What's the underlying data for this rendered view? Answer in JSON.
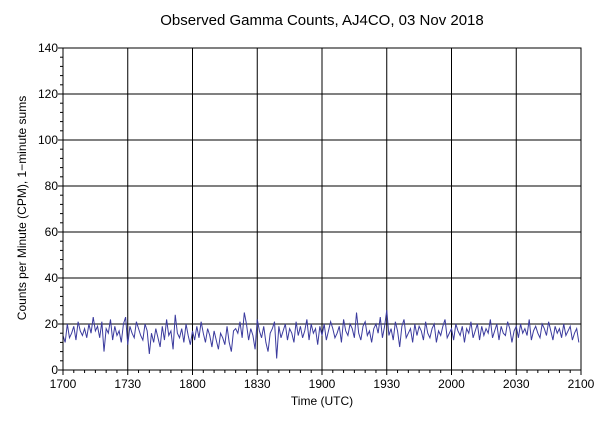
{
  "chart_data": {
    "type": "line",
    "title": "Observed Gamma Counts, AJ4CO, 03 Nov 2018",
    "xlabel": "Time (UTC)",
    "ylabel": "Counts per Minute (CPM), 1−minute sums",
    "xlim": [
      0,
      240
    ],
    "ylim": [
      0,
      140
    ],
    "x_tick_labels": [
      "1700",
      "1730",
      "1800",
      "1830",
      "1900",
      "1930",
      "2000",
      "2030",
      "2100"
    ],
    "y_tick_labels": [
      "0",
      "20",
      "40",
      "60",
      "80",
      "100",
      "120",
      "140"
    ],
    "grid": true,
    "line_color": "#3b3b9e",
    "series": [
      {
        "name": "",
        "values": [
          15,
          12,
          20,
          14,
          16,
          19,
          13,
          21,
          17,
          15,
          18,
          14,
          20,
          16,
          23,
          17,
          19,
          14,
          21,
          8,
          18,
          16,
          22,
          13,
          19,
          15,
          17,
          12,
          20,
          23,
          11,
          19,
          16,
          14,
          21,
          18,
          15,
          13,
          20,
          17,
          7,
          16,
          12,
          18,
          14,
          10,
          19,
          13,
          22,
          15,
          17,
          9,
          24,
          16,
          14,
          18,
          12,
          20,
          15,
          11,
          17,
          13,
          19,
          14,
          21,
          16,
          12,
          18,
          15,
          10,
          17,
          13,
          9,
          16,
          14,
          11,
          19,
          12,
          8,
          17,
          18,
          16,
          21,
          14,
          25,
          20,
          13,
          18,
          15,
          9,
          22,
          17,
          14,
          19,
          12,
          8,
          16,
          18,
          21,
          5,
          19,
          14,
          17,
          20,
          13,
          18,
          16,
          12,
          21,
          15,
          19,
          14,
          17,
          22,
          13,
          20,
          16,
          18,
          11,
          19,
          15,
          20,
          13,
          17,
          21,
          18,
          14,
          16,
          19,
          12,
          22,
          17,
          15,
          20,
          18,
          14,
          25,
          16,
          13,
          19,
          21,
          15,
          17,
          12,
          18,
          20,
          16,
          23,
          14,
          19,
          26,
          15,
          18,
          13,
          21,
          17,
          10,
          19,
          22,
          14,
          16,
          18,
          12,
          20,
          15,
          19,
          17,
          13,
          21,
          16,
          14,
          18,
          20,
          12,
          17,
          15,
          19,
          22,
          14,
          16,
          18,
          13,
          20,
          17,
          15,
          19,
          12,
          18,
          16,
          21,
          14,
          17,
          20,
          13,
          19,
          15,
          18,
          16,
          22,
          14,
          17,
          20,
          13,
          19,
          16,
          15,
          21,
          18,
          12,
          17,
          19,
          14,
          20,
          16,
          18,
          15,
          22,
          13,
          17,
          19,
          16,
          14,
          20,
          18,
          15,
          21,
          17,
          13,
          19,
          16,
          18,
          14,
          20,
          15,
          17,
          19,
          13,
          16,
          18,
          12
        ]
      }
    ]
  }
}
